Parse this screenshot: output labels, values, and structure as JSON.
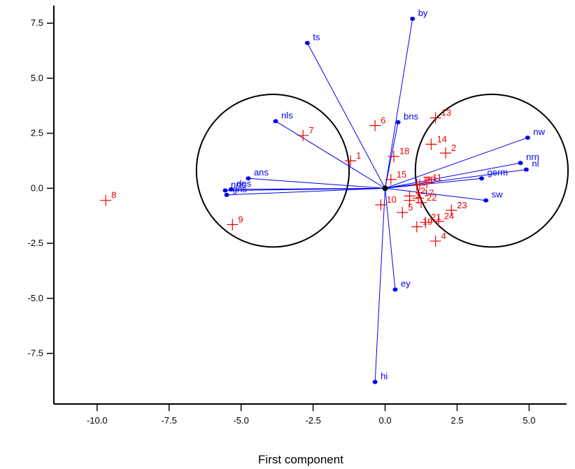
{
  "chart_data": {
    "type": "scatter",
    "subtype": "biplot",
    "title": "",
    "xlabel": "First component",
    "ylabel": "",
    "xlim": [
      -11.5,
      6.3
    ],
    "ylim": [
      -9.8,
      8.3
    ],
    "grid": false,
    "legend": "none",
    "x_ticks": [
      -10.0,
      -7.5,
      -5.0,
      -2.5,
      0.0,
      2.5,
      5.0
    ],
    "x_tick_labels": [
      "-10.0",
      "-7.5",
      "-5.0",
      "-2.5",
      "0.0",
      "2.5",
      "5.0"
    ],
    "y_ticks": [
      7.5,
      5.0,
      2.5,
      0.0,
      -2.5,
      -5.0,
      -7.5
    ],
    "y_tick_labels": [
      "7.5",
      "5.0",
      "2.5",
      "0.0",
      "-2.5",
      "-5.0",
      "-7.5"
    ],
    "colors": {
      "variables": "#0000ee",
      "observations": "#ee0000",
      "circles": "#000000",
      "axes": "#000000"
    },
    "variables": [
      {
        "name": "by",
        "x": 0.95,
        "y": 7.7
      },
      {
        "name": "ts",
        "x": -2.7,
        "y": 6.6
      },
      {
        "name": "nls",
        "x": -3.8,
        "y": 3.05
      },
      {
        "name": "bns",
        "x": 0.45,
        "y": 3.0
      },
      {
        "name": "nw",
        "x": 4.95,
        "y": 2.3
      },
      {
        "name": "nrn",
        "x": 4.7,
        "y": 1.15
      },
      {
        "name": "nl",
        "x": 4.9,
        "y": 0.85
      },
      {
        "name": "germ",
        "x": 3.35,
        "y": 0.45
      },
      {
        "name": "sw",
        "x": 3.5,
        "y": -0.55
      },
      {
        "name": "ans",
        "x": -4.75,
        "y": 0.45
      },
      {
        "name": "dns",
        "x": -5.35,
        "y": -0.05
      },
      {
        "name": "nns",
        "x": -5.55,
        "y": -0.1
      },
      {
        "name": "gns",
        "x": -5.5,
        "y": -0.3
      },
      {
        "name": "ey",
        "x": 0.35,
        "y": -4.6
      },
      {
        "name": "hi",
        "x": -0.35,
        "y": -8.8
      }
    ],
    "observations": [
      {
        "label": "1",
        "x": -1.2,
        "y": 1.25
      },
      {
        "label": "2",
        "x": 2.1,
        "y": 1.6
      },
      {
        "label": "3",
        "x": 0.85,
        "y": -0.55
      },
      {
        "label": "4",
        "x": 1.75,
        "y": -2.4
      },
      {
        "label": "5",
        "x": 0.6,
        "y": -1.1
      },
      {
        "label": "6",
        "x": -0.35,
        "y": 2.85
      },
      {
        "label": "7",
        "x": -2.85,
        "y": 2.4
      },
      {
        "label": "8",
        "x": -9.7,
        "y": -0.55
      },
      {
        "label": "9",
        "x": -5.3,
        "y": -1.65
      },
      {
        "label": "10",
        "x": -0.15,
        "y": -0.75
      },
      {
        "label": "11",
        "x": 1.45,
        "y": 0.25
      },
      {
        "label": "12",
        "x": 0.85,
        "y": -0.35
      },
      {
        "label": "13",
        "x": 1.75,
        "y": 3.2
      },
      {
        "label": "14",
        "x": 1.6,
        "y": 2.0
      },
      {
        "label": "15",
        "x": 0.2,
        "y": 0.4
      },
      {
        "label": "16",
        "x": 1.1,
        "y": 0.15
      },
      {
        "label": "17",
        "x": 1.15,
        "y": -0.45
      },
      {
        "label": "18",
        "x": 0.3,
        "y": 1.45
      },
      {
        "label": "19",
        "x": 1.1,
        "y": -1.75
      },
      {
        "label": "20",
        "x": 1.2,
        "y": 0.15
      },
      {
        "label": "21",
        "x": 1.4,
        "y": -1.55
      },
      {
        "label": "22",
        "x": 1.25,
        "y": -0.65
      },
      {
        "label": "23",
        "x": 2.3,
        "y": -1.0
      },
      {
        "label": "24",
        "x": 1.85,
        "y": -1.5
      }
    ],
    "circles": [
      {
        "cx": -3.9,
        "cy": 0.8,
        "r": 2.65
      },
      {
        "cx": 3.7,
        "cy": 0.8,
        "r": 2.65
      }
    ]
  }
}
